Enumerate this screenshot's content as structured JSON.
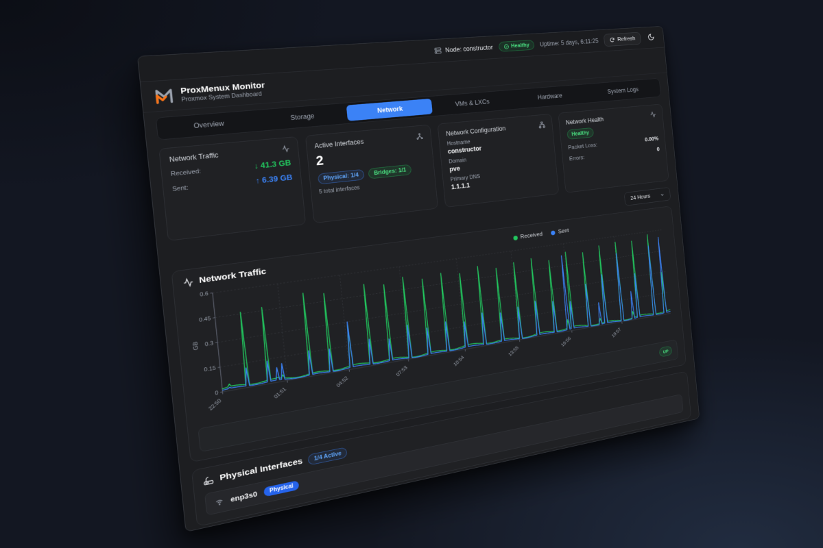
{
  "topbar": {
    "node_label": "Node: constructor",
    "health_badge": "Healthy",
    "uptime": "Uptime: 5 days, 6:11:25",
    "refresh_label": "Refresh"
  },
  "header": {
    "title": "ProxMenux Monitor",
    "subtitle": "Proxmox System Dashboard"
  },
  "tabs": {
    "active_index": 2,
    "items": [
      {
        "label": "Overview"
      },
      {
        "label": "Storage"
      },
      {
        "label": "Network"
      },
      {
        "label": "VMs & LXCs"
      },
      {
        "label": "Hardware"
      },
      {
        "label": "System Logs"
      }
    ]
  },
  "cards": {
    "traffic": {
      "title": "Network Traffic",
      "received_label": "Received:",
      "received_value": "↓ 41.3 GB",
      "sent_label": "Sent:",
      "sent_value": "↑ 6.39 GB"
    },
    "interfaces": {
      "title": "Active Interfaces",
      "count": "2",
      "physical_badge": "Physical: 1/4",
      "bridges_badge": "Bridges: 1/1",
      "total": "5 total interfaces"
    },
    "config": {
      "title": "Network Configuration",
      "hostname_label": "Hostname",
      "hostname": "constructor",
      "domain_label": "Domain",
      "domain": "pve",
      "dns_label": "Primary DNS",
      "dns": "1.1.1.1"
    },
    "health": {
      "title": "Network Health",
      "status": "Healthy",
      "packet_loss_label": "Packet Loss:",
      "packet_loss": "0.00%",
      "errors_label": "Errors:",
      "errors": "0"
    }
  },
  "controls": {
    "range_select": "24 Hours"
  },
  "chart_data": {
    "type": "line",
    "title": "Network Traffic",
    "ylabel": "GB",
    "ylim": [
      0,
      0.6
    ],
    "ytick_labels": [
      "0",
      "0.15",
      "0.3",
      "0.45",
      "0.6"
    ],
    "yticks": [
      0,
      0.15,
      0.3,
      0.45,
      0.6
    ],
    "xticks": [
      "22:50",
      "01:51",
      "04:52",
      "07:53",
      "10:54",
      "13:55",
      "16:56",
      "19:57"
    ],
    "xtick_interval_minutes": 181,
    "x_range_minutes": 1450,
    "legend": [
      "Received",
      "Sent"
    ],
    "legend_position": "top-right",
    "grid": "dashed",
    "series_colors": [
      "#22c55e",
      "#3b82f6"
    ],
    "baseline_gb": {
      "received": 0.018,
      "sent": 0.01
    },
    "spike_format": [
      "minutes_from_22:50",
      "received_gb",
      "sent_gb"
    ],
    "spikes": [
      [
        20,
        0.04,
        0.02
      ],
      [
        70,
        0.46,
        0.12
      ],
      [
        130,
        0.47,
        0.14
      ],
      [
        155,
        0.03,
        0.09
      ],
      [
        170,
        0.04,
        0.11
      ],
      [
        250,
        0.52,
        0.16
      ],
      [
        310,
        0.5,
        0.15
      ],
      [
        370,
        0.28,
        0.3
      ],
      [
        430,
        0.52,
        0.17
      ],
      [
        490,
        0.5,
        0.15
      ],
      [
        550,
        0.53,
        0.22
      ],
      [
        610,
        0.5,
        0.18
      ],
      [
        670,
        0.52,
        0.2
      ],
      [
        730,
        0.5,
        0.18
      ],
      [
        790,
        0.53,
        0.22
      ],
      [
        850,
        0.5,
        0.2
      ],
      [
        910,
        0.52,
        0.22
      ],
      [
        970,
        0.53,
        0.24
      ],
      [
        1030,
        0.5,
        0.22
      ],
      [
        1075,
        0.08,
        0.52
      ],
      [
        1090,
        0.54,
        0.2
      ],
      [
        1150,
        0.52,
        0.3
      ],
      [
        1190,
        0.05,
        0.16
      ],
      [
        1210,
        0.55,
        0.35
      ],
      [
        1270,
        0.56,
        0.48
      ],
      [
        1310,
        0.06,
        0.2
      ],
      [
        1330,
        0.55,
        0.32
      ],
      [
        1390,
        0.58,
        0.5
      ],
      [
        1430,
        0.3,
        0.55
      ]
    ]
  },
  "interface_status_row": {
    "status": "UP"
  },
  "physical_section": {
    "title": "Physical Interfaces",
    "active_badge": "1/4 Active",
    "rows": [
      {
        "name": "enp3s0",
        "type_badge": "Physical"
      }
    ]
  },
  "colors": {
    "accent_blue": "#3b82f6",
    "green": "#22c55e",
    "orange_logo": "#f97316",
    "page_bg": "#131722",
    "board_bg": "#1d1e21",
    "card_bg": "#202124"
  }
}
